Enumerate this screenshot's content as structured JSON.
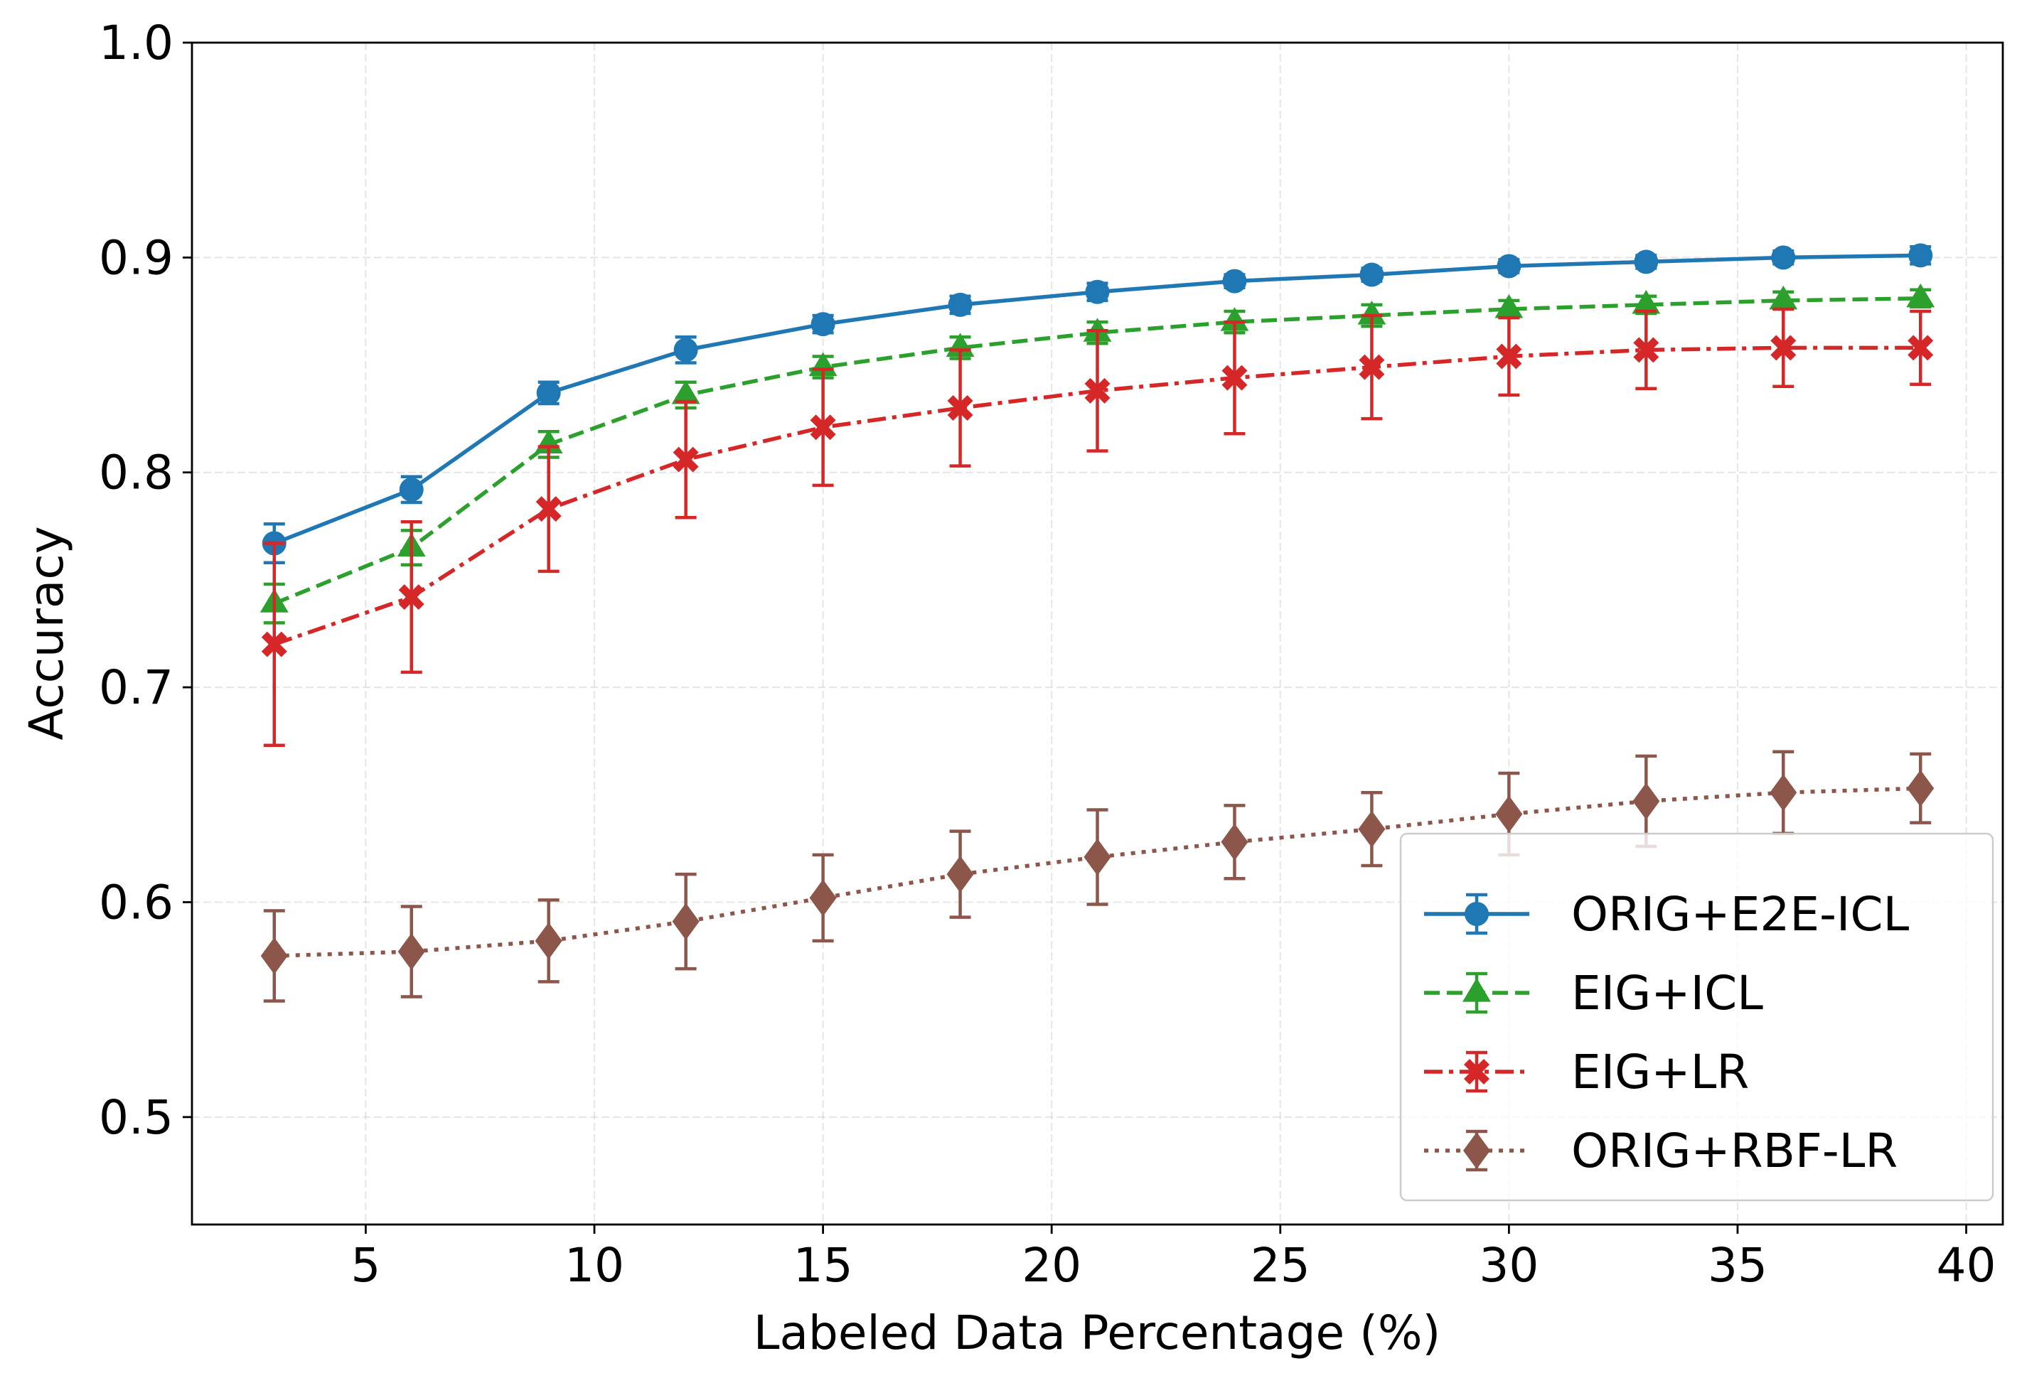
{
  "chart_data": {
    "type": "line",
    "title": "",
    "xlabel": "Labeled Data Percentage (%)",
    "ylabel": "Accuracy",
    "xlim": [
      1.2,
      40.8
    ],
    "ylim": [
      0.45,
      1.0
    ],
    "xticks": [
      5,
      10,
      15,
      20,
      25,
      30,
      35,
      40
    ],
    "xtick_labels": [
      "5",
      "10",
      "15",
      "20",
      "25",
      "30",
      "35",
      "40"
    ],
    "yticks": [
      0.5,
      0.6,
      0.7,
      0.8,
      0.9,
      1.0
    ],
    "ytick_labels": [
      "0.5",
      "0.6",
      "0.7",
      "0.8",
      "0.9",
      "1.0"
    ],
    "grid": true,
    "legend_position": "lower-right",
    "x": [
      3,
      6,
      9,
      12,
      15,
      18,
      21,
      24,
      27,
      30,
      33,
      36,
      39
    ],
    "series": [
      {
        "name": "ORIG+E2E-ICL",
        "color": "#1f77b4",
        "linestyle": "solid",
        "marker": "circle",
        "values": [
          0.767,
          0.792,
          0.837,
          0.857,
          0.869,
          0.878,
          0.884,
          0.889,
          0.892,
          0.896,
          0.898,
          0.9,
          0.901
        ],
        "errors": [
          0.009,
          0.006,
          0.005,
          0.006,
          0.004,
          0.004,
          0.004,
          0.003,
          0.003,
          0.003,
          0.003,
          0.003,
          0.004
        ]
      },
      {
        "name": "EIG+ICL",
        "color": "#2ca02c",
        "linestyle": "dashed",
        "marker": "triangle",
        "values": [
          0.739,
          0.765,
          0.813,
          0.836,
          0.849,
          0.858,
          0.865,
          0.87,
          0.873,
          0.876,
          0.878,
          0.88,
          0.881
        ],
        "errors": [
          0.009,
          0.008,
          0.006,
          0.006,
          0.005,
          0.005,
          0.005,
          0.005,
          0.005,
          0.004,
          0.004,
          0.004,
          0.004
        ]
      },
      {
        "name": "EIG+LR",
        "color": "#d62728",
        "linestyle": "dashdot",
        "marker": "x",
        "values": [
          0.72,
          0.742,
          0.783,
          0.806,
          0.821,
          0.83,
          0.838,
          0.844,
          0.849,
          0.854,
          0.857,
          0.858,
          0.858
        ],
        "errors": [
          0.047,
          0.035,
          0.029,
          0.027,
          0.027,
          0.027,
          0.028,
          0.026,
          0.024,
          0.018,
          0.018,
          0.018,
          0.017
        ]
      },
      {
        "name": "ORIG+RBF-LR",
        "color": "#8c564b",
        "linestyle": "dotted",
        "marker": "diamond",
        "values": [
          0.575,
          0.577,
          0.582,
          0.591,
          0.602,
          0.613,
          0.621,
          0.628,
          0.634,
          0.641,
          0.647,
          0.651,
          0.653
        ],
        "errors": [
          0.021,
          0.021,
          0.019,
          0.022,
          0.02,
          0.02,
          0.022,
          0.017,
          0.017,
          0.019,
          0.021,
          0.019,
          0.016
        ]
      }
    ]
  }
}
